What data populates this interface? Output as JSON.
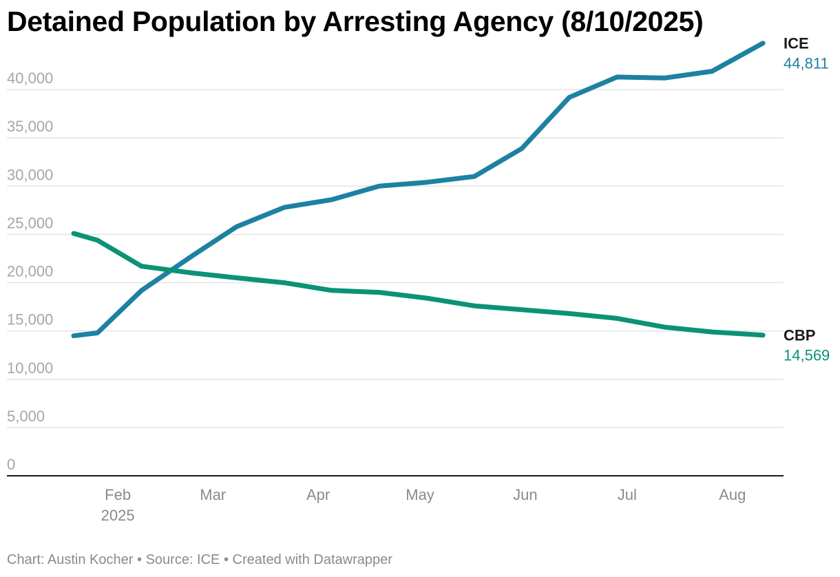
{
  "chart_data": {
    "type": "line",
    "title": "Detained Population by Arresting Agency (8/10/2025)",
    "footer": {
      "author": "Chart: Austin Kocher",
      "source": "Source: ICE",
      "tool": "Created with Datawrapper",
      "separator": "•"
    },
    "y_axis": {
      "ylim": [
        0,
        45000
      ],
      "ticks": [
        {
          "value": 0,
          "label": "0"
        },
        {
          "value": 5000,
          "label": "5,000"
        },
        {
          "value": 10000,
          "label": "10,000"
        },
        {
          "value": 15000,
          "label": "15,000"
        },
        {
          "value": 20000,
          "label": "20,000"
        },
        {
          "value": 25000,
          "label": "25,000"
        },
        {
          "value": 30000,
          "label": "30,000"
        },
        {
          "value": 35000,
          "label": "35,000"
        },
        {
          "value": 40000,
          "label": "40,000"
        }
      ]
    },
    "x_axis": {
      "range": [
        "2025-01-19",
        "2025-08-12"
      ],
      "ticks": [
        {
          "date": "2025-02-01",
          "label": "Feb",
          "sublabel": "2025"
        },
        {
          "date": "2025-03-01",
          "label": "Mar"
        },
        {
          "date": "2025-04-01",
          "label": "Apr"
        },
        {
          "date": "2025-05-01",
          "label": "May"
        },
        {
          "date": "2025-06-01",
          "label": "Jun"
        },
        {
          "date": "2025-07-01",
          "label": "Jul"
        },
        {
          "date": "2025-08-01",
          "label": "Aug"
        }
      ]
    },
    "x": [
      "2025-01-19",
      "2025-01-26",
      "2025-02-08",
      "2025-02-23",
      "2025-03-08",
      "2025-03-22",
      "2025-04-05",
      "2025-04-19",
      "2025-05-03",
      "2025-05-17",
      "2025-05-31",
      "2025-06-14",
      "2025-06-28",
      "2025-07-12",
      "2025-07-26",
      "2025-08-10"
    ],
    "series": [
      {
        "name": "ICE",
        "color": "#1d81a2",
        "last_value_label": "44,811",
        "values": [
          14500,
          14800,
          19200,
          22800,
          25800,
          27800,
          28600,
          30000,
          30400,
          31000,
          33900,
          39200,
          41300,
          41200,
          41900,
          44811
        ]
      },
      {
        "name": "CBP",
        "color": "#0b9277",
        "last_value_label": "14,569",
        "values": [
          25100,
          24400,
          21700,
          21000,
          20500,
          20000,
          19200,
          19000,
          18400,
          17600,
          17200,
          16800,
          16300,
          15400,
          14900,
          14569
        ]
      }
    ]
  }
}
